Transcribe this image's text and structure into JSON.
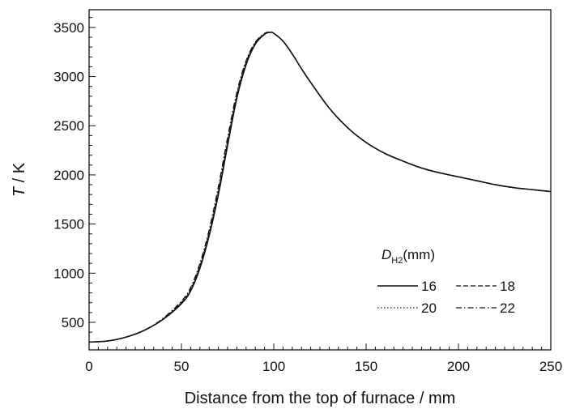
{
  "chart_data": {
    "type": "line",
    "xlabel": "Distance from the top of furnace / mm",
    "ylabel": {
      "symbol": "T",
      "rest": " / K"
    },
    "xlim": [
      0,
      250
    ],
    "ylim": [
      220,
      3680
    ],
    "xticks": [
      0,
      50,
      100,
      150,
      200,
      250
    ],
    "yticks": [
      500,
      1000,
      1500,
      2000,
      2500,
      3000,
      3500
    ],
    "grid": false,
    "legend": {
      "title": {
        "symbol": "D",
        "subscript": "H2",
        "unit": "(mm)"
      },
      "placement": "lower-right",
      "entries": [
        "16",
        "18",
        "20",
        "22"
      ]
    },
    "series": [
      {
        "name": "16",
        "style": "solid",
        "points": [
          [
            0,
            300
          ],
          [
            10,
            310
          ],
          [
            20,
            350
          ],
          [
            30,
            420
          ],
          [
            40,
            530
          ],
          [
            50,
            690
          ],
          [
            55,
            820
          ],
          [
            60,
            1050
          ],
          [
            65,
            1380
          ],
          [
            70,
            1800
          ],
          [
            75,
            2300
          ],
          [
            80,
            2780
          ],
          [
            85,
            3120
          ],
          [
            90,
            3330
          ],
          [
            95,
            3430
          ],
          [
            98,
            3450
          ],
          [
            100,
            3440
          ],
          [
            105,
            3360
          ],
          [
            110,
            3230
          ],
          [
            115,
            3080
          ],
          [
            120,
            2940
          ],
          [
            130,
            2680
          ],
          [
            140,
            2480
          ],
          [
            150,
            2330
          ],
          [
            160,
            2220
          ],
          [
            170,
            2140
          ],
          [
            180,
            2070
          ],
          [
            190,
            2020
          ],
          [
            200,
            1980
          ],
          [
            210,
            1940
          ],
          [
            220,
            1900
          ],
          [
            230,
            1870
          ],
          [
            240,
            1850
          ],
          [
            250,
            1830
          ]
        ]
      },
      {
        "name": "18",
        "style": "dashed",
        "points": [
          [
            0,
            300
          ],
          [
            10,
            310
          ],
          [
            20,
            350
          ],
          [
            30,
            420
          ],
          [
            40,
            530
          ],
          [
            50,
            700
          ],
          [
            55,
            830
          ],
          [
            60,
            1070
          ],
          [
            65,
            1400
          ],
          [
            70,
            1830
          ],
          [
            75,
            2330
          ],
          [
            80,
            2800
          ],
          [
            85,
            3140
          ],
          [
            90,
            3340
          ],
          [
            95,
            3430
          ],
          [
            98,
            3450
          ],
          [
            100,
            3440
          ],
          [
            105,
            3360
          ],
          [
            110,
            3230
          ],
          [
            115,
            3080
          ],
          [
            120,
            2940
          ],
          [
            130,
            2680
          ],
          [
            140,
            2480
          ],
          [
            150,
            2330
          ],
          [
            160,
            2220
          ],
          [
            170,
            2140
          ],
          [
            180,
            2070
          ],
          [
            190,
            2020
          ],
          [
            200,
            1980
          ],
          [
            210,
            1940
          ],
          [
            220,
            1900
          ],
          [
            230,
            1870
          ],
          [
            240,
            1850
          ],
          [
            250,
            1830
          ]
        ]
      },
      {
        "name": "20",
        "style": "dotted",
        "points": [
          [
            0,
            300
          ],
          [
            10,
            310
          ],
          [
            20,
            350
          ],
          [
            30,
            420
          ],
          [
            40,
            535
          ],
          [
            50,
            705
          ],
          [
            55,
            840
          ],
          [
            60,
            1085
          ],
          [
            65,
            1420
          ],
          [
            70,
            1850
          ],
          [
            75,
            2350
          ],
          [
            80,
            2820
          ],
          [
            85,
            3150
          ],
          [
            90,
            3345
          ],
          [
            95,
            3435
          ],
          [
            98,
            3450
          ],
          [
            100,
            3440
          ],
          [
            105,
            3360
          ],
          [
            110,
            3230
          ],
          [
            115,
            3080
          ],
          [
            120,
            2940
          ],
          [
            130,
            2680
          ],
          [
            140,
            2480
          ],
          [
            150,
            2330
          ],
          [
            160,
            2220
          ],
          [
            170,
            2140
          ],
          [
            180,
            2070
          ],
          [
            190,
            2020
          ],
          [
            200,
            1980
          ],
          [
            210,
            1940
          ],
          [
            220,
            1900
          ],
          [
            230,
            1870
          ],
          [
            240,
            1850
          ],
          [
            250,
            1830
          ]
        ]
      },
      {
        "name": "22",
        "style": "dashdot",
        "points": [
          [
            0,
            300
          ],
          [
            10,
            310
          ],
          [
            20,
            350
          ],
          [
            30,
            420
          ],
          [
            40,
            540
          ],
          [
            50,
            715
          ],
          [
            55,
            855
          ],
          [
            60,
            1100
          ],
          [
            65,
            1440
          ],
          [
            70,
            1880
          ],
          [
            75,
            2380
          ],
          [
            80,
            2840
          ],
          [
            85,
            3160
          ],
          [
            90,
            3350
          ],
          [
            95,
            3440
          ],
          [
            98,
            3450
          ],
          [
            100,
            3440
          ],
          [
            105,
            3360
          ],
          [
            110,
            3230
          ],
          [
            115,
            3080
          ],
          [
            120,
            2940
          ],
          [
            130,
            2680
          ],
          [
            140,
            2480
          ],
          [
            150,
            2330
          ],
          [
            160,
            2220
          ],
          [
            170,
            2140
          ],
          [
            180,
            2070
          ],
          [
            190,
            2020
          ],
          [
            200,
            1980
          ],
          [
            210,
            1940
          ],
          [
            220,
            1900
          ],
          [
            230,
            1870
          ],
          [
            240,
            1850
          ],
          [
            250,
            1830
          ]
        ]
      }
    ]
  }
}
